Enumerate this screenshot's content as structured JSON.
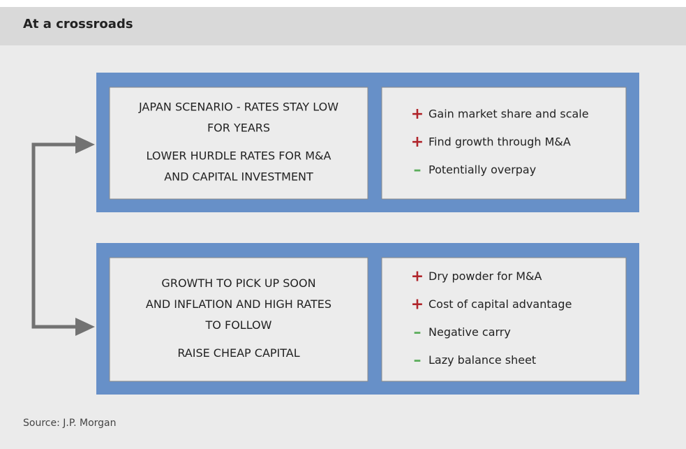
{
  "header": {
    "title": "At a crossroads"
  },
  "scenarios": [
    {
      "lines": [
        "JAPAN SCENARIO - RATES STAY LOW",
        "FOR YEARS"
      ],
      "action": [
        "LOWER HURDLE RATES FOR M&A",
        "AND CAPITAL INVESTMENT"
      ],
      "items": [
        {
          "sign": "+",
          "text": "Gain market share and scale"
        },
        {
          "sign": "+",
          "text": "Find growth through M&A"
        },
        {
          "sign": "–",
          "text": "Potentially overpay"
        }
      ]
    },
    {
      "lines": [
        "GROWTH TO PICK UP SOON",
        "AND INFLATION AND HIGH RATES",
        "TO FOLLOW"
      ],
      "action": [
        "RAISE CHEAP CAPITAL"
      ],
      "items": [
        {
          "sign": "+",
          "text": "Dry powder for M&A"
        },
        {
          "sign": "+",
          "text": "Cost of capital advantage"
        },
        {
          "sign": "–",
          "text": "Negative carry"
        },
        {
          "sign": "–",
          "text": "Lazy balance sheet"
        }
      ]
    }
  ],
  "footer": {
    "source": "Source: J.P. Morgan"
  }
}
